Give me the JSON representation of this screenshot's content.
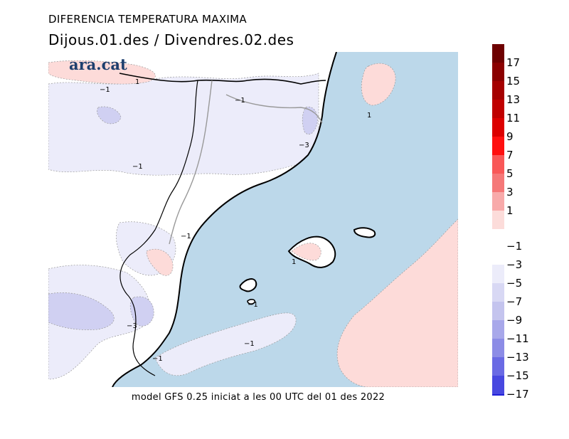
{
  "header": {
    "title": "DIFERENCIA TEMPERATURA MAXIMA",
    "subtitle": "Dijous.01.des / Divendres.02.des"
  },
  "logo": {
    "text": "ara.cat"
  },
  "footer": {
    "text": "model GFS 0.25 iniciat a les 00 UTC del 01 des 2022"
  },
  "colors": {
    "sea_band": "#bcd8ea",
    "warm_band": "#fddbd9",
    "cool_band": "#ececfa",
    "cooler_band": "#d0d0f2",
    "coast": "#000000",
    "borders": "#999999"
  },
  "contour_labels": [
    {
      "id": "c1",
      "text": "1"
    },
    {
      "id": "c2",
      "text": "−1"
    },
    {
      "id": "c3",
      "text": "−1"
    },
    {
      "id": "c4",
      "text": "1"
    },
    {
      "id": "c5",
      "text": "−3"
    },
    {
      "id": "c6",
      "text": "−1"
    },
    {
      "id": "c7",
      "text": "−1"
    },
    {
      "id": "c8",
      "text": "1"
    },
    {
      "id": "c9",
      "text": "−1"
    },
    {
      "id": "c10",
      "text": "−3"
    },
    {
      "id": "c11",
      "text": "−1"
    },
    {
      "id": "c12",
      "text": "−1"
    }
  ],
  "colorbar": {
    "warm": [
      {
        "label": "17",
        "color": "#8b0000"
      },
      {
        "label": "15",
        "color": "#a50000"
      },
      {
        "label": "13",
        "color": "#c00000"
      },
      {
        "label": "11",
        "color": "#dc0000"
      },
      {
        "label": "9",
        "color": "#ff1010"
      },
      {
        "label": "7",
        "color": "#f95858"
      },
      {
        "label": "5",
        "color": "#f57878"
      },
      {
        "label": "3",
        "color": "#f8aaaa"
      },
      {
        "label": "1",
        "color": "#fcdcda"
      }
    ],
    "warm_top_color": "#6e0000",
    "cold": [
      {
        "label": "−1",
        "color": "#ffffff"
      },
      {
        "label": "−3",
        "color": "#ececfa"
      },
      {
        "label": "−5",
        "color": "#d8d8f4"
      },
      {
        "label": "−7",
        "color": "#c4c4ee"
      },
      {
        "label": "−9",
        "color": "#a8a8ea"
      },
      {
        "label": "−11",
        "color": "#8c8ce6"
      },
      {
        "label": "−13",
        "color": "#6a6ae4"
      },
      {
        "label": "−15",
        "color": "#4848e0"
      },
      {
        "label": "−17",
        "color": "#2020d8"
      }
    ],
    "cold_bottom_color": "#0000c8"
  }
}
